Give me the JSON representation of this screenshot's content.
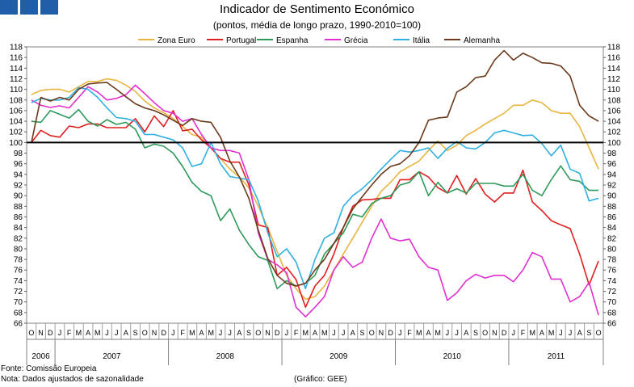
{
  "header": {
    "title": "Indicador de Sentimento Económico",
    "subtitle": "(pontos, média de longo prazo, 1990-2010=100)"
  },
  "footer": {
    "source": "Fonte: Comissão Europeia",
    "note": "Nota: Dados ajustados de sazonalidade",
    "credit": "(Gráfico: GEE)"
  },
  "chart_data": {
    "type": "line",
    "title": "Indicador de Sentimento Económico",
    "subtitle": "(pontos, média de longo prazo, 1990-2010=100)",
    "ylim": [
      66,
      118
    ],
    "ystep": 2,
    "reference_line": 100,
    "legend_position": "top",
    "month_labels": [
      "O",
      "N",
      "D",
      "J",
      "F",
      "M",
      "A",
      "M",
      "J",
      "J",
      "A",
      "S",
      "O",
      "N",
      "D",
      "J",
      "F",
      "M",
      "A",
      "M",
      "J",
      "J",
      "A",
      "S",
      "O",
      "N",
      "D",
      "J",
      "F",
      "M",
      "A",
      "M",
      "J",
      "J",
      "A",
      "S",
      "O",
      "N",
      "D",
      "J",
      "F",
      "M",
      "A",
      "M",
      "J",
      "J",
      "A",
      "S",
      "O",
      "N",
      "D",
      "J",
      "F",
      "M",
      "A",
      "M",
      "J",
      "J",
      "A",
      "S",
      "O"
    ],
    "year_labels": [
      {
        "label": "2006",
        "start": 0,
        "end": 2
      },
      {
        "label": "2007",
        "start": 3,
        "end": 14
      },
      {
        "label": "2008",
        "start": 15,
        "end": 26
      },
      {
        "label": "2009",
        "start": 27,
        "end": 38
      },
      {
        "label": "2010",
        "start": 39,
        "end": 50
      },
      {
        "label": "2011",
        "start": 51,
        "end": 60
      }
    ],
    "series": [
      {
        "name": "Zona Euro",
        "color": "#e8b540",
        "values": [
          109,
          109.8,
          110,
          110,
          109.5,
          110.5,
          111.5,
          111.5,
          112,
          111.7,
          110.8,
          109.6,
          107.8,
          106.5,
          105.6,
          104.5,
          103,
          101.5,
          101,
          99,
          97,
          95,
          93.5,
          91.5,
          88,
          84,
          79.5,
          75,
          72.5,
          70.5,
          71,
          73,
          76,
          79,
          82,
          85,
          88,
          90.8,
          92.5,
          94.5,
          95.5,
          96.5,
          98.5,
          100.3,
          98.5,
          99.5,
          101.3,
          102.3,
          103.5,
          104.5,
          105.5,
          107,
          107,
          108,
          107.5,
          106,
          105.5,
          105.5,
          103,
          99,
          95
        ]
      },
      {
        "name": "Portugal",
        "color": "#e02020",
        "values": [
          100,
          102.3,
          101.3,
          101,
          103.1,
          102.8,
          103.5,
          103.5,
          102.8,
          102.8,
          102.8,
          104.5,
          102,
          105,
          103,
          106,
          102.2,
          102.5,
          100.5,
          99,
          97,
          96.3,
          96.3,
          92,
          84.5,
          84,
          75,
          76.5,
          74.2,
          69,
          73,
          75,
          79,
          84,
          88,
          89.2,
          89.3,
          89.5,
          89.5,
          93,
          93,
          94.5,
          93.5,
          91.5,
          90.5,
          93.8,
          90.3,
          93.2,
          90.3,
          88.8,
          90.5,
          90.5,
          94.8,
          88.8,
          87.2,
          85.3,
          84.5,
          83.8,
          79,
          73.2,
          77.7
        ]
      },
      {
        "name": "Espanha",
        "color": "#2e9a5a",
        "values": [
          104,
          103.8,
          106,
          105.3,
          104.6,
          106.2,
          104,
          103.1,
          104.3,
          103.4,
          103.8,
          102.5,
          99,
          99.7,
          99.3,
          98,
          95.5,
          92.5,
          90.8,
          90,
          85.3,
          87.5,
          83.5,
          80.8,
          78.5,
          77.8,
          72.5,
          74,
          73,
          73.5,
          75,
          79,
          81,
          83,
          86.5,
          86,
          88.5,
          89.5,
          90,
          92,
          92.5,
          94.5,
          90,
          92.5,
          90.5,
          91.3,
          90.5,
          92.3,
          92.3,
          92.3,
          91.8,
          91.8,
          94,
          91,
          90,
          93,
          95.6,
          93,
          92.7,
          91,
          91
        ]
      },
      {
        "name": "Grécia",
        "color": "#e030d0",
        "values": [
          108,
          107,
          106.6,
          106.9,
          106.5,
          108.5,
          110.5,
          109.5,
          108,
          108.3,
          109,
          110.8,
          109.2,
          107.5,
          106,
          105.5,
          104,
          104.5,
          101.5,
          99,
          98.5,
          98.5,
          98,
          93,
          83,
          78,
          77,
          75.5,
          69,
          67.2,
          69,
          71,
          76,
          78.5,
          76.5,
          77.5,
          82,
          85.6,
          82,
          81.5,
          81.8,
          78.5,
          76.5,
          76,
          70.3,
          71.7,
          74,
          75.2,
          74.5,
          75,
          75,
          73.8,
          76,
          79.3,
          78.5,
          74.3,
          74.3,
          70,
          71,
          73.7,
          67.5
        ]
      },
      {
        "name": "Itália",
        "color": "#30b0e0",
        "values": [
          107.5,
          108.3,
          108,
          108,
          108.5,
          110.3,
          110,
          108.5,
          106.5,
          104.7,
          104.5,
          104,
          101.5,
          101.5,
          101,
          100.5,
          99,
          95.5,
          96,
          100,
          96,
          93.6,
          93.3,
          93,
          89,
          83,
          78.5,
          80,
          77.5,
          72.5,
          78,
          82,
          83,
          88,
          90,
          91.3,
          93,
          95,
          96.8,
          98.5,
          98.2,
          98.5,
          99,
          97,
          98.9,
          100.2,
          99,
          98.8,
          100,
          101.8,
          102.3,
          101.8,
          101.3,
          101.4,
          99.8,
          97.5,
          99.5,
          95,
          94.2,
          89,
          89.5
        ]
      },
      {
        "name": "Alemanha",
        "color": "#6b3a1c",
        "values": [
          100,
          108.5,
          107.8,
          108.5,
          108,
          110,
          111,
          111.2,
          111.3,
          110,
          108.6,
          107.3,
          106.5,
          106,
          105.2,
          104.2,
          103.2,
          104.5,
          104,
          103.8,
          101,
          96.5,
          93.5,
          89.5,
          83.5,
          78.2,
          75,
          73.5,
          73,
          73.5,
          76,
          78,
          81,
          84,
          87.5,
          89.8,
          92,
          94,
          95.5,
          96,
          97.5,
          100,
          104.2,
          104.6,
          104.8,
          109.5,
          110.5,
          112.2,
          112.5,
          115.5,
          117.3,
          115.5,
          116.8,
          116,
          115,
          114.9,
          114.4,
          112.5,
          107,
          105,
          104
        ]
      }
    ]
  }
}
